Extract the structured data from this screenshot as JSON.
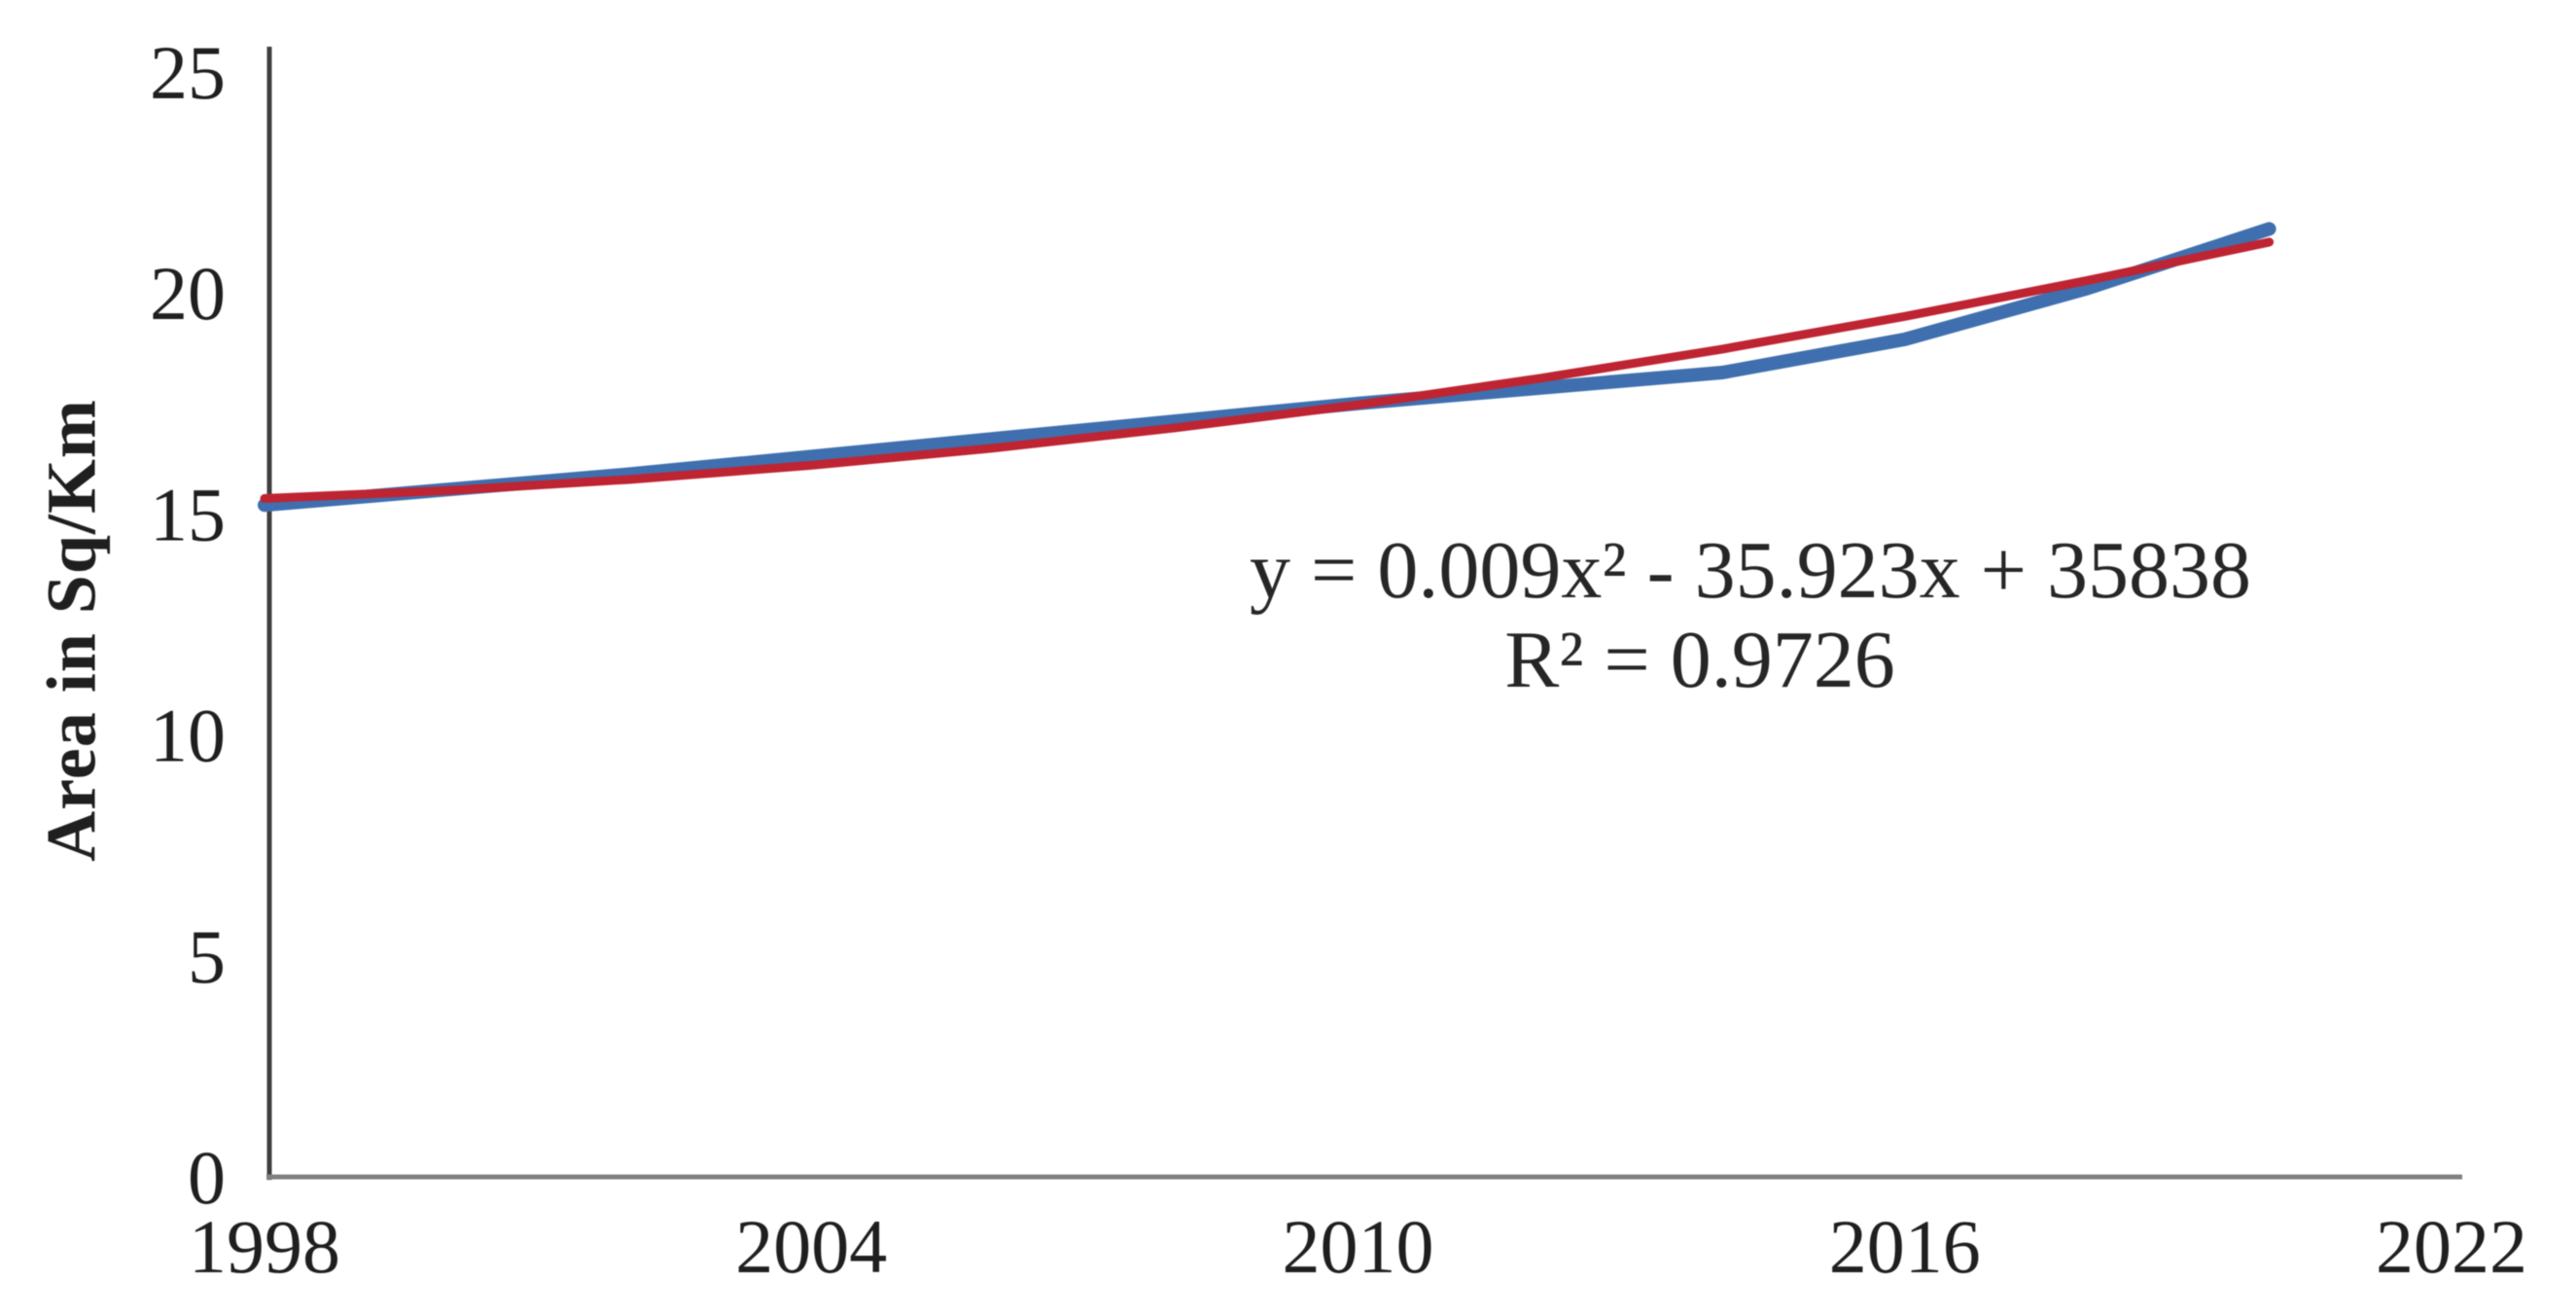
{
  "chart_data": {
    "type": "line",
    "title": "",
    "xlabel": "",
    "ylabel": "Area in Sq/Km",
    "xlim": [
      1998,
      2022
    ],
    "ylim": [
      0,
      25
    ],
    "x_ticks": [
      1998,
      2004,
      2010,
      2016,
      2022
    ],
    "y_ticks": [
      0,
      5,
      10,
      15,
      20,
      25
    ],
    "grid": false,
    "legend": "none",
    "x": [
      1998,
      2000,
      2002,
      2004,
      2006,
      2008,
      2010,
      2012,
      2014,
      2016,
      2018,
      2020
    ],
    "series": [
      {
        "name": "observed-area",
        "color": "#3f6fae",
        "values": [
          15.2,
          15.55,
          15.9,
          16.3,
          16.7,
          17.1,
          17.5,
          17.85,
          18.2,
          18.95,
          20.1,
          21.45
        ]
      },
      {
        "name": "polynomial-trendline",
        "color": "#be2432",
        "values": [
          15.35,
          15.53,
          15.78,
          16.1,
          16.49,
          16.95,
          17.47,
          18.07,
          18.73,
          19.47,
          20.28,
          21.15
        ]
      }
    ],
    "annotations": [
      {
        "name": "trendline-equation",
        "text": "y = 0.009x² - 35.923x + 35838"
      },
      {
        "name": "r-squared",
        "text": "R² = 0.9726"
      }
    ],
    "axis_color_y": "#404040",
    "axis_color_x": "#808080",
    "text_color": "#1f1f1f"
  }
}
